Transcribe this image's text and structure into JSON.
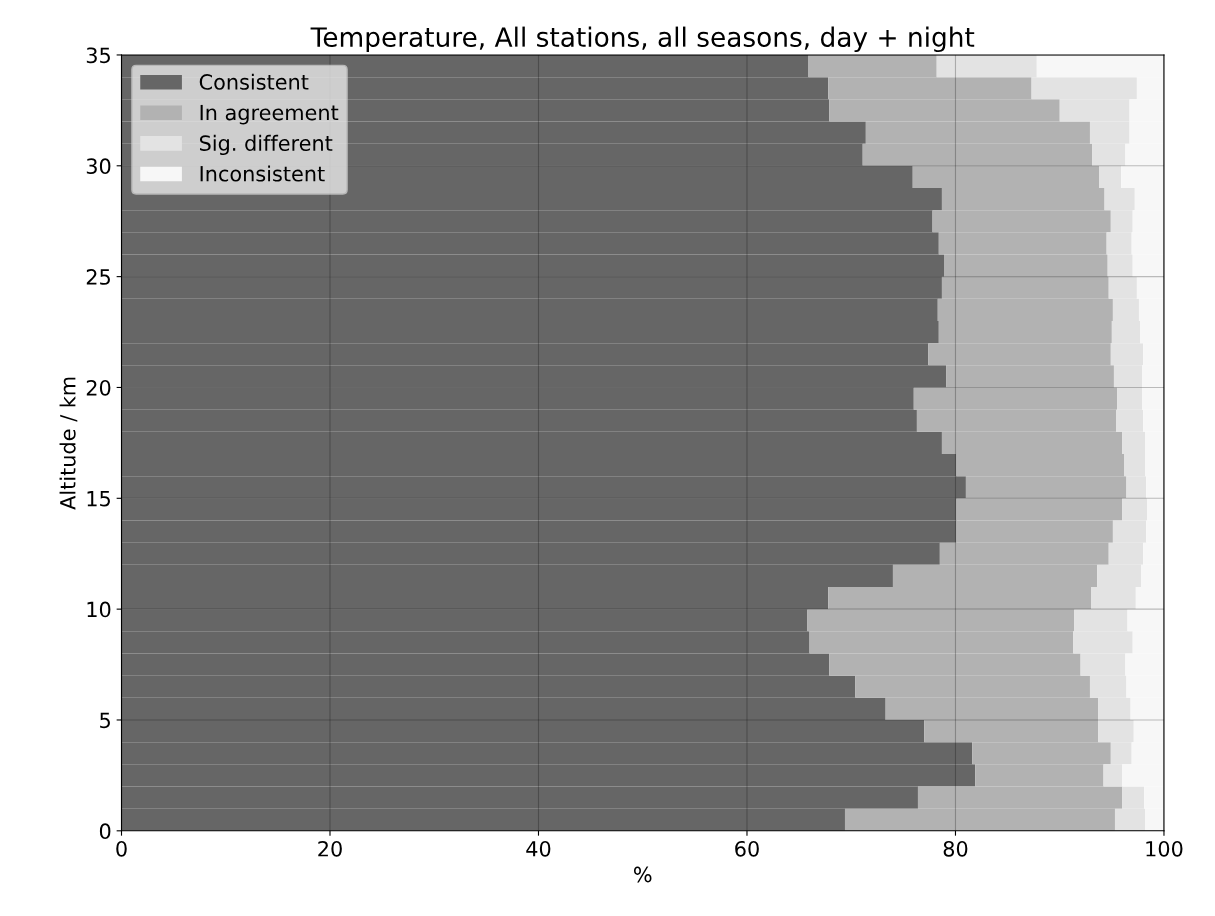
{
  "chart_data": {
    "type": "bar",
    "orientation": "horizontal",
    "stacked": true,
    "title": "Temperature, All stations, all seasons, day + night",
    "xlabel": "%",
    "ylabel": "Altitude / km",
    "x": [
      0.5,
      1.5,
      2.5,
      3.5,
      4.5,
      5.5,
      6.5,
      7.5,
      8.5,
      9.5,
      10.5,
      11.5,
      12.5,
      13.5,
      14.5,
      15.5,
      16.5,
      17.5,
      18.5,
      19.5,
      20.5,
      21.5,
      22.5,
      23.5,
      24.5,
      25.5,
      26.5,
      27.5,
      28.5,
      29.5,
      30.5,
      31.5,
      32.5,
      33.5,
      34.5
    ],
    "series": [
      {
        "name": "Consistent",
        "color": "#666666",
        "values": [
          69.4,
          76.4,
          81.9,
          81.6,
          77.0,
          73.3,
          70.4,
          67.9,
          66.0,
          65.8,
          67.8,
          74.0,
          78.5,
          80.1,
          80.1,
          81.0,
          80.1,
          78.7,
          76.3,
          76.0,
          79.1,
          77.4,
          78.4,
          78.3,
          78.7,
          78.9,
          78.4,
          77.8,
          78.7,
          75.9,
          71.1,
          71.4,
          67.9,
          67.8,
          65.9
        ]
      },
      {
        "name": "In agreement",
        "color": "#b2b2b2",
        "values": [
          25.9,
          19.6,
          12.3,
          13.3,
          16.7,
          20.4,
          22.5,
          24.1,
          25.3,
          25.6,
          25.2,
          19.6,
          16.2,
          15.0,
          15.9,
          15.4,
          16.1,
          17.3,
          19.1,
          19.5,
          16.1,
          17.5,
          16.6,
          16.8,
          16.0,
          15.7,
          16.1,
          17.1,
          15.6,
          17.9,
          22.0,
          21.5,
          22.1,
          19.5,
          12.3
        ]
      },
      {
        "name": "Sig. different",
        "color": "#e3e3e3",
        "values": [
          2.9,
          2.1,
          1.8,
          2.0,
          3.4,
          3.1,
          3.5,
          4.3,
          5.7,
          5.1,
          4.3,
          4.2,
          3.3,
          3.2,
          2.4,
          1.9,
          2.0,
          2.2,
          2.6,
          2.4,
          2.7,
          3.1,
          2.7,
          2.5,
          2.7,
          2.4,
          2.4,
          2.1,
          2.9,
          2.1,
          3.2,
          3.8,
          6.7,
          10.1,
          9.6
        ]
      },
      {
        "name": "Inconsistent",
        "color": "#f7f7f7",
        "values": [
          1.8,
          1.9,
          4.0,
          3.1,
          2.9,
          3.2,
          3.6,
          3.7,
          3.0,
          3.5,
          2.7,
          2.2,
          2.0,
          1.7,
          1.6,
          1.7,
          1.8,
          1.8,
          2.0,
          2.1,
          2.1,
          2.0,
          2.3,
          2.4,
          2.6,
          3.0,
          3.1,
          3.0,
          2.8,
          4.1,
          3.7,
          3.3,
          3.3,
          2.6,
          12.2
        ]
      }
    ],
    "xlim": [
      0,
      100
    ],
    "xticks": [
      0,
      20,
      40,
      60,
      80,
      100
    ],
    "ylim": [
      0,
      35
    ],
    "yticks": [
      0,
      5,
      10,
      15,
      20,
      25,
      30,
      35
    ],
    "grid": true,
    "legend": "top left"
  }
}
